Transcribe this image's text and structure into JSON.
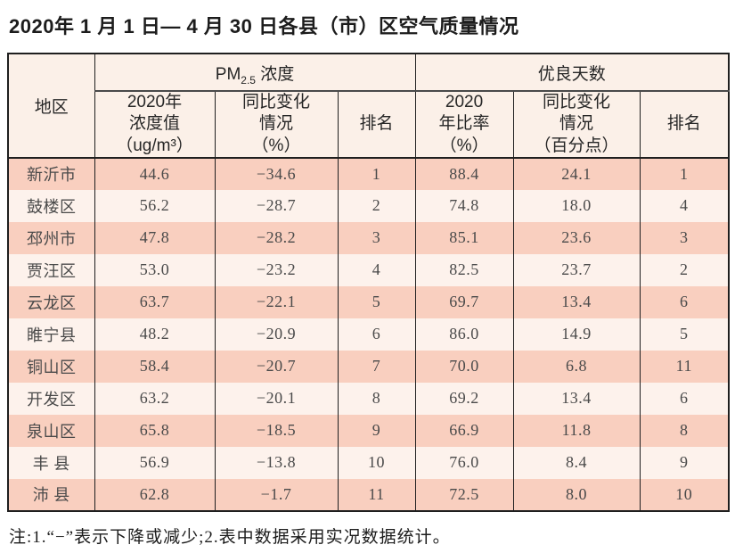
{
  "page": {
    "title": "2020年 1 月 1 日— 4 月 30 日各县（市）区空气质量情况",
    "note": "注:1.“−”表示下降或减少;2.表中数据采用实况数据统计。"
  },
  "colors": {
    "row_odd": "#f9cfbf",
    "row_even": "#fdf2ec",
    "header_bg": "#fbf0e8",
    "border": "#1f1f1f"
  },
  "table": {
    "header": {
      "region": "地区",
      "pm_group": {
        "prefix": "PM",
        "sub": "2.5",
        "suffix": " 浓度"
      },
      "good_days_group": "优良天数",
      "pm_value_lines": [
        "2020年",
        "浓度值",
        "（ug/m³）"
      ],
      "pm_change_lines": [
        "同比变化",
        "情况",
        "（%）"
      ],
      "pm_rank": "排名",
      "rate_lines": [
        "2020",
        "年比率",
        "（%）"
      ],
      "rate_change_lines": [
        "同比变化",
        "情况",
        "（百分点）"
      ],
      "rate_rank": "排名"
    },
    "rows": [
      {
        "region": "新沂市",
        "pm_value": "44.6",
        "pm_change": "−34.6",
        "pm_rank": "1",
        "rate": "88.4",
        "rate_change": "24.1",
        "rate_rank": "1"
      },
      {
        "region": "鼓楼区",
        "pm_value": "56.2",
        "pm_change": "−28.7",
        "pm_rank": "2",
        "rate": "74.8",
        "rate_change": "18.0",
        "rate_rank": "4"
      },
      {
        "region": "邳州市",
        "pm_value": "47.8",
        "pm_change": "−28.2",
        "pm_rank": "3",
        "rate": "85.1",
        "rate_change": "23.6",
        "rate_rank": "3"
      },
      {
        "region": "贾汪区",
        "pm_value": "53.0",
        "pm_change": "−23.2",
        "pm_rank": "4",
        "rate": "82.5",
        "rate_change": "23.7",
        "rate_rank": "2"
      },
      {
        "region": "云龙区",
        "pm_value": "63.7",
        "pm_change": "−22.1",
        "pm_rank": "5",
        "rate": "69.7",
        "rate_change": "13.4",
        "rate_rank": "6"
      },
      {
        "region": "睢宁县",
        "pm_value": "48.2",
        "pm_change": "−20.9",
        "pm_rank": "6",
        "rate": "86.0",
        "rate_change": "14.9",
        "rate_rank": "5"
      },
      {
        "region": "铜山区",
        "pm_value": "58.4",
        "pm_change": "−20.7",
        "pm_rank": "7",
        "rate": "70.0",
        "rate_change": "6.8",
        "rate_rank": "11"
      },
      {
        "region": "开发区",
        "pm_value": "63.2",
        "pm_change": "−20.1",
        "pm_rank": "8",
        "rate": "69.2",
        "rate_change": "13.4",
        "rate_rank": "6"
      },
      {
        "region": "泉山区",
        "pm_value": "65.8",
        "pm_change": "−18.5",
        "pm_rank": "9",
        "rate": "66.9",
        "rate_change": "11.8",
        "rate_rank": "8"
      },
      {
        "region": "丰 县",
        "pm_value": "56.9",
        "pm_change": "−13.8",
        "pm_rank": "10",
        "rate": "76.0",
        "rate_change": "8.4",
        "rate_rank": "9"
      },
      {
        "region": "沛 县",
        "pm_value": "62.8",
        "pm_change": "−1.7",
        "pm_rank": "11",
        "rate": "72.5",
        "rate_change": "8.0",
        "rate_rank": "10"
      }
    ]
  }
}
